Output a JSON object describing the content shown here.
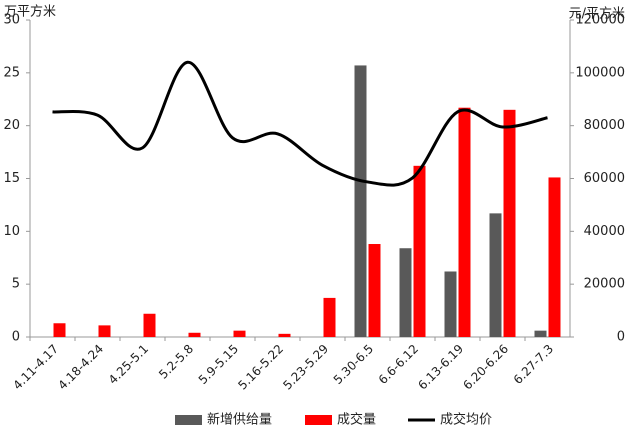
{
  "chart_data": {
    "type": "bar-line",
    "y_unit": "万平方米",
    "y2_unit": "元/平方米",
    "categories": [
      "4.11-4.17",
      "4.18-4.24",
      "4.25-5.1",
      "5.2-5.8",
      "5.9-5.15",
      "5.16-5.22",
      "5.23-5.29",
      "5.30-6.5",
      "6.6-6.12",
      "6.13-6.19",
      "6.20-6.26",
      "6.27-7.3"
    ],
    "series": [
      {
        "name": "新增供给量",
        "color": "#595959",
        "type": "bar",
        "values": [
          0,
          0,
          0,
          0,
          0,
          0,
          0,
          25.7,
          8.4,
          6.2,
          11.7,
          0.6
        ]
      },
      {
        "name": "成交量",
        "color": "#ff0000",
        "type": "bar",
        "values": [
          1.3,
          1.1,
          2.2,
          0.4,
          0.6,
          0.3,
          3.7,
          8.8,
          16.2,
          21.7,
          21.5,
          15.1
        ]
      },
      {
        "name": "成交均价",
        "color": "#000000",
        "type": "line",
        "axis": "y2",
        "values": [
          85200,
          84000,
          71600,
          104000,
          75400,
          76900,
          65000,
          58700,
          60200,
          85200,
          79500,
          83000
        ]
      }
    ],
    "ylim": [
      0,
      30
    ],
    "yticks": [
      0,
      5,
      10,
      15,
      20,
      25,
      30
    ],
    "y2lim": [
      0,
      120000
    ],
    "y2ticks": [
      0,
      20000,
      40000,
      60000,
      80000,
      100000,
      120000
    ],
    "grid": false,
    "legend": "bottom"
  }
}
